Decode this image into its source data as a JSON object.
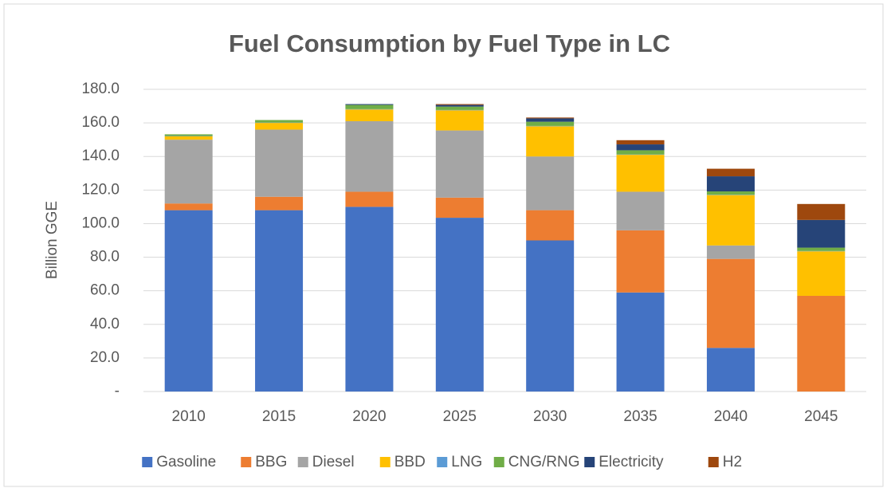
{
  "chart_data": {
    "type": "bar",
    "stacked": true,
    "title": "Fuel Consumption by Fuel Type in LC",
    "y_label": "Billion GGE",
    "categories": [
      "2010",
      "2015",
      "2020",
      "2025",
      "2030",
      "2035",
      "2040",
      "2045"
    ],
    "series": [
      {
        "name": "Gasoline",
        "color": "#4472c4",
        "values": [
          108,
          108,
          110,
          103.5,
          90,
          59,
          26,
          0
        ]
      },
      {
        "name": "BBG",
        "color": "#ed7d31",
        "values": [
          4,
          8,
          9,
          12,
          18,
          37,
          53,
          57
        ]
      },
      {
        "name": "Diesel",
        "color": "#a5a5a5",
        "values": [
          38,
          40,
          42,
          40,
          32,
          23,
          8,
          0
        ]
      },
      {
        "name": "BBD",
        "color": "#ffc000",
        "values": [
          2,
          4,
          7,
          12,
          18,
          22,
          30,
          26.5
        ]
      },
      {
        "name": "LNG",
        "color": "#5b9bd5",
        "values": [
          0.2,
          0.2,
          0.2,
          0.2,
          0.2,
          0.2,
          0.2,
          0.2
        ]
      },
      {
        "name": "CNG/RNG",
        "color": "#70ad47",
        "values": [
          1,
          1.5,
          2.5,
          2,
          2.5,
          2.5,
          2,
          2
        ]
      },
      {
        "name": "Electricity",
        "color": "#264478",
        "values": [
          0,
          0,
          0.5,
          1,
          2,
          3.5,
          9,
          16.5
        ]
      },
      {
        "name": "H2",
        "color": "#9e480e",
        "values": [
          0,
          0,
          0,
          0.5,
          0.5,
          2.5,
          4.5,
          9.5
        ]
      }
    ],
    "ylim": [
      0,
      180
    ],
    "yticks": [
      {
        "value": 0,
        "label": "-"
      },
      {
        "value": 20,
        "label": "20.0"
      },
      {
        "value": 40,
        "label": "40.0"
      },
      {
        "value": 60,
        "label": "60.0"
      },
      {
        "value": 80,
        "label": "80.0"
      },
      {
        "value": 100,
        "label": "100.0"
      },
      {
        "value": 120,
        "label": "120.0"
      },
      {
        "value": 140,
        "label": "140.0"
      },
      {
        "value": 160,
        "label": "160.0"
      },
      {
        "value": 180,
        "label": "180.0"
      }
    ],
    "grid": true,
    "legend": "bottom"
  }
}
